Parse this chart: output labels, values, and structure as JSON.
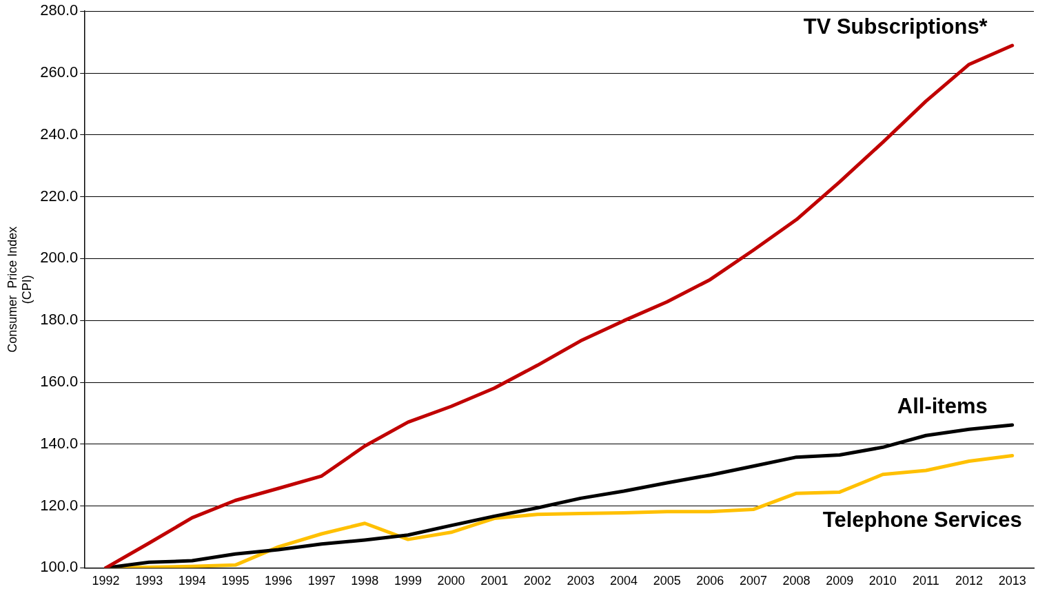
{
  "chart_data": {
    "type": "line",
    "ylabel": "Consumer  Price Index\n(CPI)",
    "categories": [
      "1992",
      "1993",
      "1994",
      "1995",
      "1996",
      "1997",
      "1998",
      "1999",
      "2000",
      "2001",
      "2002",
      "2003",
      "2004",
      "2005",
      "2006",
      "2007",
      "2008",
      "2009",
      "2010",
      "2011",
      "2012",
      "2013"
    ],
    "series": [
      {
        "name": "TV Subscriptions*",
        "color": "#c00000",
        "values": [
          100,
          108,
          116.2,
          121.8,
          125.7,
          129.7,
          139.4,
          147.1,
          152.2,
          158.1,
          165.5,
          173.4,
          179.9,
          186.0,
          193.2,
          202.7,
          212.6,
          224.8,
          237.6,
          250.9,
          262.8,
          268.9
        ]
      },
      {
        "name": "All-items",
        "color": "#000000",
        "values": [
          100,
          101.8,
          102.3,
          104.5,
          105.9,
          107.7,
          109.0,
          110.6,
          113.7,
          116.7,
          119.4,
          122.5,
          124.8,
          127.5,
          130.0,
          132.9,
          135.8,
          136.5,
          139.0,
          142.8,
          144.8,
          146.2
        ]
      },
      {
        "name": "Telephone Services",
        "color": "#ffc000",
        "values": [
          100,
          100.2,
          100.5,
          100.9,
          106.8,
          111.0,
          114.4,
          109.2,
          111.5,
          116.0,
          117.3,
          117.6,
          117.8,
          118.2,
          118.2,
          118.9,
          124.1,
          124.5,
          130.2,
          131.5,
          134.5,
          136.3
        ]
      }
    ],
    "ylim": [
      100,
      280
    ],
    "yticks": [
      {
        "value": 100,
        "label": "100.0"
      },
      {
        "value": 120,
        "label": "120.0"
      },
      {
        "value": 140,
        "label": "140.0"
      },
      {
        "value": 160,
        "label": "160.0"
      },
      {
        "value": 180,
        "label": "180.0"
      },
      {
        "value": 200,
        "label": "200.0"
      },
      {
        "value": 220,
        "label": "220.0"
      },
      {
        "value": 240,
        "label": "240.0"
      },
      {
        "value": 260,
        "label": "260.0"
      },
      {
        "value": 280,
        "label": "280.0"
      }
    ],
    "grid": "y",
    "legend": false,
    "marker": "none",
    "line_style": "solid"
  }
}
